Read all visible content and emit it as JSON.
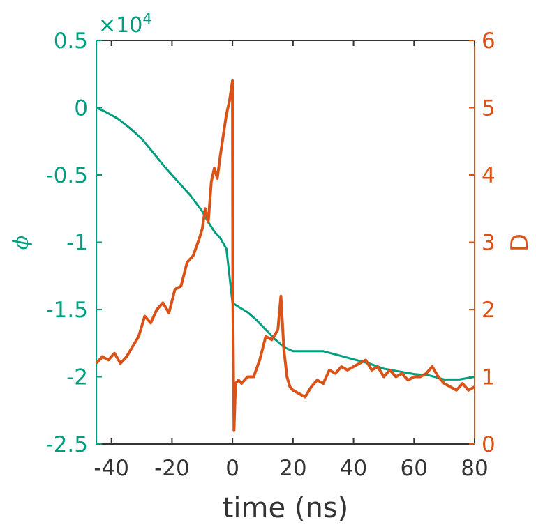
{
  "chart_data": {
    "type": "line",
    "xlabel": "time (ns)",
    "ylabel_left": "ϕ",
    "ylabel_right": "D",
    "left_axis_exponent_prefix": "×10",
    "left_axis_exponent": "4",
    "xlim": [
      -45,
      80
    ],
    "ylim_left": [
      -2.5,
      0.5
    ],
    "ylim_right": [
      0,
      6
    ],
    "x_ticks": [
      {
        "value": -40,
        "label": "-40"
      },
      {
        "value": -20,
        "label": "-20"
      },
      {
        "value": 0,
        "label": "0"
      },
      {
        "value": 20,
        "label": "20"
      },
      {
        "value": 40,
        "label": "40"
      },
      {
        "value": 60,
        "label": "60"
      },
      {
        "value": 80,
        "label": "80"
      }
    ],
    "y_left_ticks": [
      {
        "value": 0.5,
        "label": "0.5"
      },
      {
        "value": 0,
        "label": "0"
      },
      {
        "value": -0.5,
        "label": "-0.5"
      },
      {
        "value": -1,
        "label": "-1"
      },
      {
        "value": -1.5,
        "label": "-1.5"
      },
      {
        "value": -2,
        "label": "-2"
      },
      {
        "value": -2.5,
        "label": "-2.5"
      }
    ],
    "y_right_ticks": [
      {
        "value": 6,
        "label": "6"
      },
      {
        "value": 5,
        "label": "5"
      },
      {
        "value": 4,
        "label": "4"
      },
      {
        "value": 3,
        "label": "3"
      },
      {
        "value": 2,
        "label": "2"
      },
      {
        "value": 1,
        "label": "1"
      },
      {
        "value": 0,
        "label": "0"
      }
    ],
    "colors": {
      "left": "#009E7F",
      "right": "#D95319",
      "axis_text": "#333333"
    },
    "series": [
      {
        "axis": "left",
        "color": "#009E7F",
        "x": [
          -45,
          -42,
          -38,
          -34,
          -30,
          -26,
          -22,
          -18,
          -14,
          -10,
          -8,
          -6,
          -4,
          -2,
          -1,
          0,
          2,
          5,
          8,
          11,
          14,
          17,
          20,
          25,
          30,
          35,
          40,
          45,
          50,
          55,
          60,
          65,
          70,
          75,
          80
        ],
        "y": [
          0.0,
          -0.03,
          -0.08,
          -0.15,
          -0.23,
          -0.34,
          -0.45,
          -0.55,
          -0.65,
          -0.77,
          -0.85,
          -0.92,
          -0.97,
          -1.05,
          -1.25,
          -1.45,
          -1.48,
          -1.52,
          -1.58,
          -1.65,
          -1.72,
          -1.78,
          -1.81,
          -1.81,
          -1.81,
          -1.84,
          -1.87,
          -1.9,
          -1.94,
          -1.96,
          -1.98,
          -1.99,
          -2.02,
          -2.02,
          -2.0
        ]
      },
      {
        "axis": "right",
        "color": "#D95319",
        "x": [
          -45,
          -43,
          -41,
          -39,
          -37,
          -35,
          -33,
          -31,
          -29,
          -27,
          -25,
          -23,
          -21,
          -19,
          -17,
          -15,
          -13,
          -11,
          -10,
          -9,
          -8,
          -7,
          -6,
          -5,
          -4,
          -3,
          -2,
          -1,
          0,
          0.1,
          0.5,
          1,
          2,
          3,
          5,
          7,
          9,
          11,
          13,
          15,
          16,
          17,
          18,
          19,
          20,
          22,
          24,
          26,
          28,
          30,
          32,
          34,
          36,
          38,
          40,
          42,
          44,
          46,
          48,
          50,
          52,
          54,
          56,
          58,
          60,
          62,
          64,
          66,
          68,
          70,
          72,
          74,
          76,
          78,
          80
        ],
        "y": [
          1.2,
          1.3,
          1.25,
          1.35,
          1.2,
          1.3,
          1.45,
          1.6,
          1.9,
          1.8,
          2.0,
          2.1,
          1.95,
          2.3,
          2.35,
          2.7,
          2.8,
          3.05,
          3.2,
          3.5,
          3.3,
          3.9,
          4.1,
          3.95,
          4.3,
          4.6,
          4.9,
          5.1,
          5.4,
          2.2,
          0.2,
          0.9,
          0.95,
          0.9,
          1.0,
          1.0,
          1.25,
          1.6,
          1.55,
          1.7,
          2.2,
          1.4,
          1.0,
          0.85,
          0.8,
          0.75,
          0.7,
          0.85,
          0.95,
          0.9,
          1.1,
          1.05,
          1.15,
          1.1,
          1.15,
          1.2,
          1.25,
          1.1,
          1.15,
          1.0,
          1.1,
          1.0,
          1.05,
          0.95,
          1.0,
          1.0,
          1.05,
          1.15,
          1.0,
          0.9,
          0.85,
          0.8,
          0.9,
          0.8,
          0.85
        ]
      }
    ]
  }
}
